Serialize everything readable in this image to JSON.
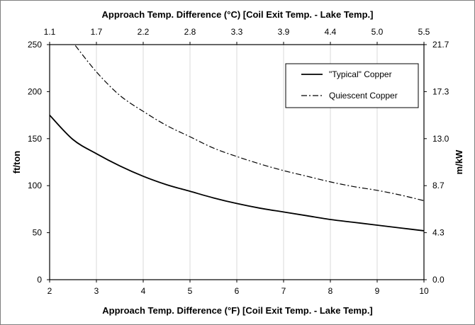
{
  "chart_data": {
    "type": "line",
    "x": [
      2,
      2.5,
      3,
      3.5,
      4,
      4.5,
      5,
      5.5,
      6,
      6.5,
      7,
      7.5,
      8,
      8.5,
      9,
      9.5,
      10
    ],
    "series": [
      {
        "name": "\"Typical\" Copper",
        "line_style": "solid",
        "color": "#000000",
        "x": [
          2,
          2.5,
          3,
          3.5,
          4,
          4.5,
          5,
          5.5,
          6,
          6.5,
          7,
          7.5,
          8,
          8.5,
          9,
          9.5,
          10
        ],
        "values": [
          175,
          149,
          134,
          121,
          110,
          101,
          94,
          87,
          81,
          76,
          72,
          68,
          64,
          61,
          58,
          55,
          52
        ]
      },
      {
        "name": "Quiescent Copper",
        "line_style": "dash-dot",
        "color": "#000000",
        "x": [
          2.55,
          3,
          3.5,
          4,
          4.5,
          5,
          5.5,
          6,
          6.5,
          7,
          7.5,
          8,
          8.5,
          9,
          9.5,
          10
        ],
        "values": [
          249,
          221,
          196,
          179,
          164,
          152,
          140,
          131,
          123,
          116,
          110,
          104,
          99,
          95,
          90,
          84
        ]
      }
    ],
    "xlabel": "Approach Temp. Difference (°F) [Coil Exit Temp. - Lake Temp.]",
    "ylabel": "ft/ton",
    "x2label": "Approach Temp. Difference (°C) [Coil Exit Temp. - Lake Temp.]",
    "y2label": "m/kW",
    "xlim": [
      2,
      10
    ],
    "ylim": [
      0,
      250
    ],
    "x_ticks": [
      2,
      3,
      4,
      5,
      6,
      7,
      8,
      9,
      10
    ],
    "x_tick_labels": [
      "2",
      "3",
      "4",
      "5",
      "6",
      "7",
      "8",
      "9",
      "10"
    ],
    "y_ticks": [
      0,
      50,
      100,
      150,
      200,
      250
    ],
    "y_tick_labels": [
      "0",
      "50",
      "100",
      "150",
      "200",
      "250"
    ],
    "x2_tick_labels": [
      "1.1",
      "1.7",
      "2.2",
      "2.8",
      "3.3",
      "3.9",
      "4.4",
      "5.0",
      "5.5"
    ],
    "y2_tick_labels": [
      "0.0",
      "4.3",
      "8.7",
      "13.0",
      "17.3",
      "21.7"
    ],
    "grid": {
      "vertical": true,
      "horizontal": false,
      "color": "#d9d9d9"
    },
    "legend_position": "top-right"
  }
}
